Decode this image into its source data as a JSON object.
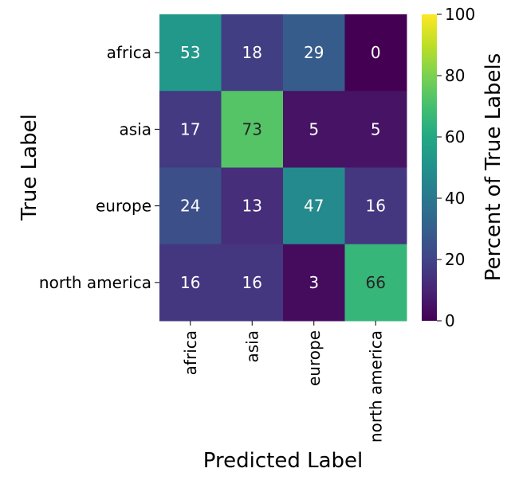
{
  "chart_data": {
    "type": "heatmap",
    "x_categories": [
      "africa",
      "asia",
      "europe",
      "north america"
    ],
    "y_categories": [
      "africa",
      "asia",
      "europe",
      "north america"
    ],
    "values": [
      [
        53,
        18,
        29,
        0
      ],
      [
        17,
        73,
        5,
        5
      ],
      [
        24,
        13,
        47,
        16
      ],
      [
        16,
        16,
        3,
        66
      ]
    ],
    "xlabel": "Predicted Label",
    "ylabel": "True Label",
    "colorbar": {
      "label": "Percent of True Labels",
      "range": [
        0,
        100
      ],
      "ticks": [
        "0",
        "20",
        "40",
        "60",
        "80",
        "100"
      ],
      "colormap": "viridis"
    },
    "annotations": true
  }
}
